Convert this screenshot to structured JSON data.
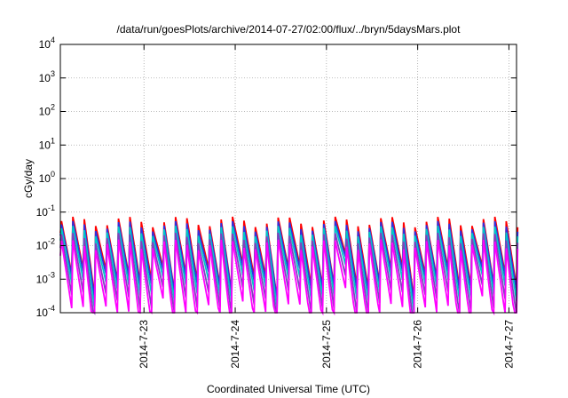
{
  "chart_data": {
    "type": "line",
    "title": "/data/run/goesPlots/archive/2014-07-27/02:00/flux/../bryn/5daysMars.plot",
    "xlabel": "Coordinated Universal Time (UTC)",
    "ylabel": "cGy/day",
    "yscale": "log",
    "ylim": [
      0.0001,
      10000
    ],
    "y_ticks": [
      {
        "base": "10",
        "exp": "-4"
      },
      {
        "base": "10",
        "exp": "-3"
      },
      {
        "base": "10",
        "exp": "-2"
      },
      {
        "base": "10",
        "exp": "-1"
      },
      {
        "base": "10",
        "exp": "0"
      },
      {
        "base": "10",
        "exp": "1"
      },
      {
        "base": "10",
        "exp": "2"
      },
      {
        "base": "10",
        "exp": "3"
      },
      {
        "base": "10",
        "exp": "4"
      }
    ],
    "xlim": [
      "2014-07-22 02:00",
      "2014-07-27 02:00"
    ],
    "x_ticks": [
      "2014-7-23",
      "2014-7-24",
      "2014-7-25",
      "2014-7-26",
      "2014-7-27"
    ],
    "grid": true,
    "legend": "none",
    "pattern": {
      "peak_period_hours": 3,
      "peak_value": 0.04,
      "peak_drop_hours": 0.3
    },
    "series": [
      {
        "color": "#ff0000",
        "scale": 1.35,
        "decay_per_hour": 1.45
      },
      {
        "color": "#3030e0",
        "scale": 1.0,
        "decay_per_hour": 1.4
      },
      {
        "color": "#00c8c8",
        "scale": 0.72,
        "decay_per_hour": 1.5
      },
      {
        "color": "#8040c0",
        "scale": 0.45,
        "decay_per_hour": 1.65
      },
      {
        "color": "#ff00ff",
        "scale": 0.28,
        "decay_per_hour": 1.85
      }
    ]
  }
}
